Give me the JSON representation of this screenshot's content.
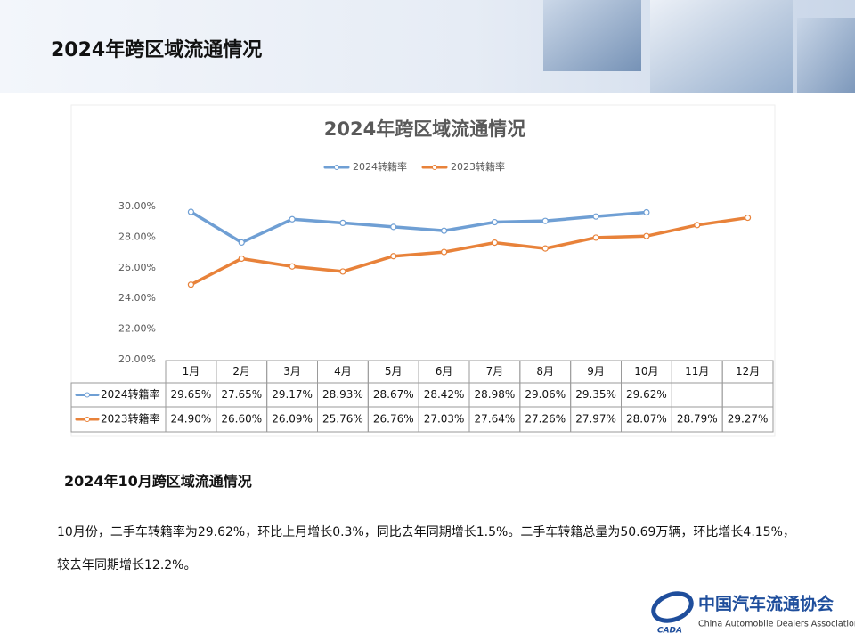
{
  "header": {
    "title": "2024年跨区域流通情况"
  },
  "chart_data": {
    "type": "line",
    "title": "2024年跨区域流通情况",
    "categories": [
      "1月",
      "2月",
      "3月",
      "4月",
      "5月",
      "6月",
      "7月",
      "8月",
      "9月",
      "10月",
      "11月",
      "12月"
    ],
    "series": [
      {
        "name": "2024转籍率",
        "color": "#6f9fd4",
        "values": [
          29.65,
          27.65,
          29.17,
          28.93,
          28.67,
          28.42,
          28.98,
          29.06,
          29.35,
          29.62,
          null,
          null
        ],
        "value_labels": [
          "29.65%",
          "27.65%",
          "29.17%",
          "28.93%",
          "28.67%",
          "28.42%",
          "28.98%",
          "29.06%",
          "29.35%",
          "29.62%",
          null,
          null
        ]
      },
      {
        "name": "2023转籍率",
        "color": "#e8823a",
        "values": [
          24.9,
          26.6,
          26.09,
          25.76,
          26.76,
          27.03,
          27.64,
          27.26,
          27.97,
          28.07,
          28.79,
          29.27
        ],
        "value_labels": [
          "24.90%",
          "26.60%",
          "26.09%",
          "25.76%",
          "26.76%",
          "27.03%",
          "27.64%",
          "27.26%",
          "27.97%",
          "28.07%",
          "28.79%",
          "29.27%"
        ]
      }
    ],
    "ylim": [
      20,
      30
    ],
    "yticks": [
      {
        "value": 20,
        "label": "20.00%"
      },
      {
        "value": 22,
        "label": "22.00%"
      },
      {
        "value": 24,
        "label": "24.00%"
      },
      {
        "value": 26,
        "label": "26.00%"
      },
      {
        "value": 28,
        "label": "28.00%"
      },
      {
        "value": 30,
        "label": "30.00%"
      }
    ],
    "grid": false,
    "legend": "top"
  },
  "section": {
    "title": "2024年10月跨区域流通情况",
    "text": "10月份，二手车转籍率为29.62%，环比上月增长0.3%，同比去年同期增长1.5%。二手车转籍总量为50.69万辆，环比增长4.15%，较去年同期增长12.2%。"
  },
  "footer": {
    "logo_mark": "CADA",
    "org_name": "中国汽车流通协会",
    "org_name_en": "China Automobile Dealers Association"
  }
}
